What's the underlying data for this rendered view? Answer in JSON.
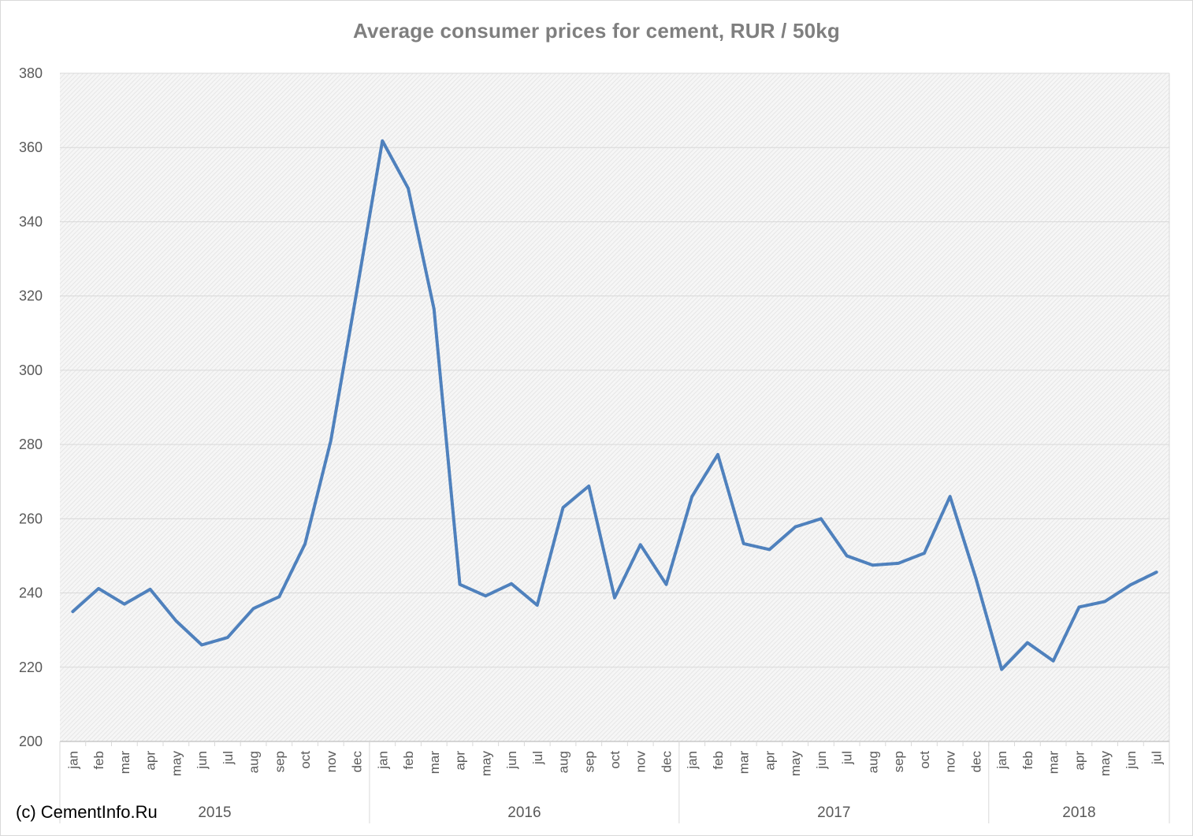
{
  "chart_data": {
    "type": "line",
    "title": "Average consumer prices for cement, RUR / 50kg",
    "ylim": [
      200,
      380
    ],
    "yticks": [
      200,
      220,
      240,
      260,
      280,
      300,
      320,
      340,
      360,
      380
    ],
    "grid": true,
    "line_color": "#4f81bd",
    "years": [
      {
        "label": "2015",
        "months": [
          "jan",
          "feb",
          "mar",
          "apr",
          "may",
          "jun",
          "jul",
          "aug",
          "sep",
          "oct",
          "nov",
          "dec"
        ]
      },
      {
        "label": "2016",
        "months": [
          "jan",
          "feb",
          "mar",
          "apr",
          "may",
          "jun",
          "jul",
          "aug",
          "sep",
          "oct",
          "nov",
          "dec"
        ]
      },
      {
        "label": "2017",
        "months": [
          "jan",
          "feb",
          "mar",
          "apr",
          "may",
          "jun",
          "jul",
          "aug",
          "sep",
          "oct",
          "nov",
          "dec"
        ]
      },
      {
        "label": "2018",
        "months": [
          "jan",
          "feb",
          "mar",
          "apr",
          "may",
          "jun",
          "jul"
        ]
      }
    ],
    "values": [
      235.0,
      241.2,
      237.0,
      241.0,
      232.5,
      226.0,
      228.0,
      235.8,
      239.0,
      253.2,
      281.0,
      321.0,
      361.8,
      349.0,
      316.5,
      242.3,
      239.2,
      242.5,
      236.7,
      263.0,
      268.8,
      238.7,
      253.0,
      242.3,
      266.0,
      277.3,
      253.3,
      251.7,
      257.8,
      260.0,
      250.0,
      247.5,
      248.0,
      250.7,
      266.0,
      244.0,
      219.4,
      226.6,
      221.7,
      236.2,
      237.7,
      242.2,
      245.6
    ]
  },
  "copyright": "(c) CementInfo.Ru"
}
